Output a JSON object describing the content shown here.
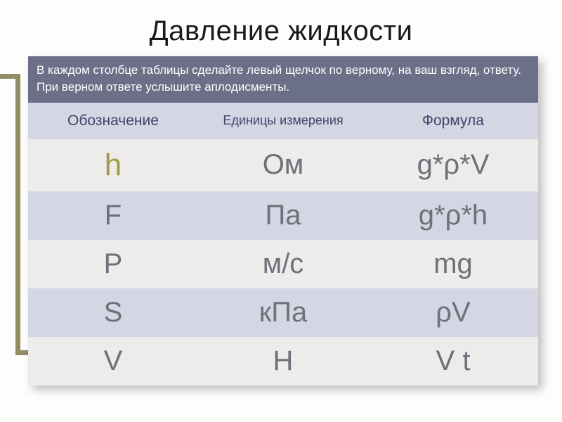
{
  "title": "Давление жидкости",
  "instruction": "В каждом столбце таблицы сделайте левый щелчок по верному, на ваш взгляд, ответу.\nПри верном ответе услышите аплодисменты.",
  "headers": {
    "col1": "Обозначение",
    "col2": "Единицы измерения",
    "col3": "Формула"
  },
  "rows": [
    {
      "c1": "h",
      "c2": "Ом",
      "c3": "g*ρ*V",
      "highlight": true
    },
    {
      "c1": "F",
      "c2": "Па",
      "c3": "g*ρ*h",
      "highlight": false
    },
    {
      "c1": "P",
      "c2": "м/с",
      "c3": "mg",
      "highlight": false
    },
    {
      "c1": "S",
      "c2": "кПа",
      "c3": "ρV",
      "highlight": false
    },
    {
      "c1": "V",
      "c2": "Н",
      "c3": "V t",
      "highlight": false
    }
  ],
  "style": {
    "title_color": "#1a1a1a",
    "title_fontsize": 40,
    "instruction_bg": "#6b6f88",
    "instruction_fg": "#ffffff",
    "header_bg": "#d5d6e4",
    "header_fg": "#40456a",
    "row_dark_bg": "#eeeceb",
    "row_light_bg": "#d5d6e4",
    "cell_fg": "#6f7079",
    "highlight_fg": "#a49a46",
    "cell_fontsize": 40,
    "highlight_fontsize": 44,
    "accent_stripe": "#938d64",
    "page_bg": "#fdfdfb",
    "shadow": "6px 6px 12px rgba(0,0,0,0.25)"
  }
}
